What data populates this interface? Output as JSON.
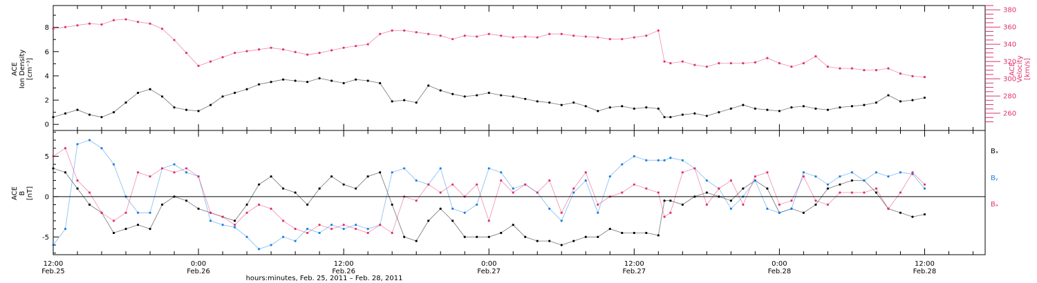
{
  "figure": {
    "xlabel": "hours:minutes, Feb. 25, 2011 – Feb. 28, 2011",
    "x_ticks": [
      {
        "t": 0,
        "time": "12:00",
        "date": "Feb.25"
      },
      {
        "t": 12,
        "time": "0:00",
        "date": "Feb.26"
      },
      {
        "t": 24,
        "time": "12:00",
        "date": "Feb.26"
      },
      {
        "t": 36,
        "time": "0:00",
        "date": "Feb.27"
      },
      {
        "t": 48,
        "time": "12:00",
        "date": "Feb.27"
      },
      {
        "t": 60,
        "time": "0:00",
        "date": "Feb.28"
      },
      {
        "t": 72,
        "time": "12:00",
        "date": "Feb.28"
      }
    ],
    "colors": {
      "density": "#000000",
      "velocity": "#e0326a",
      "bx": "#000000",
      "by": "#1a7fe6",
      "bz": "#e0326a"
    }
  },
  "chart_data": [
    {
      "type": "scatter",
      "title": "",
      "xlim": [
        0,
        77
      ],
      "ylabel_left": [
        "ACE",
        "Ion Density",
        "[cm⁻³]"
      ],
      "ylabel_right": [
        "ACE",
        "Velocity",
        "[km/s]"
      ],
      "ylim_left": [
        -0.5,
        9.8
      ],
      "ylim_right": [
        240,
        385
      ],
      "left_ticks": [
        "0",
        "2",
        "4",
        "6",
        "8"
      ],
      "right_ticks": [
        "260",
        "280",
        "300",
        "320",
        "340",
        "360",
        "380"
      ],
      "series": [
        {
          "name": "",
          "axis": "left",
          "color": "#000000",
          "x": [
            0,
            1,
            2,
            3,
            4,
            5,
            6,
            7,
            8,
            9,
            10,
            11,
            12,
            13,
            14,
            15,
            16,
            17,
            18,
            19,
            20,
            21,
            22,
            23,
            24,
            25,
            26,
            27,
            28,
            29,
            30,
            31,
            32,
            33,
            34,
            35,
            36,
            37,
            38,
            39,
            40,
            41,
            42,
            43,
            44,
            45,
            46,
            47,
            48,
            49,
            50,
            50.5,
            51,
            52,
            53,
            54,
            55,
            56,
            57,
            58,
            59,
            60,
            61,
            62,
            63,
            64,
            65,
            66,
            67,
            68,
            69,
            70,
            71,
            72
          ],
          "y": [
            0.6,
            0.9,
            1.2,
            0.8,
            0.6,
            1.0,
            1.8,
            2.6,
            2.9,
            2.3,
            1.4,
            1.2,
            1.1,
            1.6,
            2.3,
            2.6,
            2.9,
            3.3,
            3.5,
            3.7,
            3.6,
            3.5,
            3.8,
            3.6,
            3.4,
            3.7,
            3.6,
            3.4,
            1.9,
            2.0,
            1.8,
            3.2,
            2.8,
            2.5,
            2.3,
            2.4,
            2.6,
            2.4,
            2.3,
            2.1,
            1.9,
            1.8,
            1.6,
            1.8,
            1.5,
            1.1,
            1.4,
            1.5,
            1.3,
            1.4,
            1.3,
            0.6,
            0.6,
            0.8,
            0.9,
            0.7,
            1.0,
            1.3,
            1.6,
            1.3,
            1.2,
            1.1,
            1.4,
            1.5,
            1.3,
            1.2,
            1.4,
            1.5,
            1.6,
            1.8,
            2.4,
            1.9,
            2.0,
            2.2
          ]
        },
        {
          "name": "",
          "axis": "right",
          "color": "#e0326a",
          "x": [
            0,
            1,
            2,
            3,
            4,
            5,
            6,
            7,
            8,
            9,
            10,
            11,
            12,
            13,
            14,
            15,
            16,
            17,
            18,
            19,
            20,
            21,
            22,
            23,
            24,
            25,
            26,
            27,
            28,
            29,
            30,
            31,
            32,
            33,
            34,
            35,
            36,
            37,
            38,
            39,
            40,
            41,
            42,
            43,
            44,
            45,
            46,
            47,
            48,
            49,
            50,
            50.5,
            51,
            52,
            53,
            54,
            55,
            56,
            57,
            58,
            59,
            60,
            61,
            62,
            63,
            64,
            65,
            66,
            67,
            68,
            69,
            70,
            71,
            72
          ],
          "y": [
            358,
            360,
            362,
            364,
            363,
            368,
            369,
            366,
            364,
            358,
            345,
            330,
            315,
            320,
            325,
            330,
            332,
            334,
            336,
            334,
            331,
            328,
            330,
            333,
            336,
            338,
            340,
            352,
            356,
            356,
            354,
            352,
            350,
            346,
            350,
            349,
            352,
            350,
            348,
            349,
            348,
            352,
            352,
            350,
            349,
            348,
            346,
            346,
            348,
            350,
            356,
            320,
            318,
            320,
            316,
            314,
            318,
            318,
            318,
            319,
            324,
            318,
            314,
            318,
            326,
            314,
            312,
            312,
            310,
            310,
            312,
            306,
            303,
            302
          ]
        }
      ]
    },
    {
      "type": "scatter",
      "title": "",
      "xlim": [
        0,
        77
      ],
      "ylabel": [
        "ACE",
        "B",
        "[nT]"
      ],
      "ylim": [
        -7.2,
        8.2
      ],
      "y_ticks": [
        "-5",
        "0",
        "5"
      ],
      "legend": [
        "Bₓ",
        "Bᵧ",
        "Bₔ"
      ],
      "legend_text": [
        "Bx",
        "By",
        "Bz"
      ],
      "legend_position": "right",
      "series": [
        {
          "name": "Bx",
          "color": "#000000",
          "x": [
            0,
            1,
            2,
            3,
            4,
            5,
            6,
            7,
            8,
            9,
            10,
            11,
            12,
            13,
            14,
            15,
            16,
            17,
            18,
            19,
            20,
            21,
            22,
            23,
            24,
            25,
            26,
            27,
            28,
            29,
            30,
            31,
            32,
            33,
            34,
            35,
            36,
            37,
            38,
            39,
            40,
            41,
            42,
            43,
            44,
            45,
            46,
            47,
            48,
            49,
            50,
            50.5,
            51,
            52,
            53,
            54,
            55,
            56,
            57,
            58,
            59,
            60,
            61,
            62,
            63,
            64,
            65,
            66,
            67,
            68,
            69,
            70,
            71,
            72
          ],
          "y": [
            3.5,
            3.0,
            1.0,
            -1.0,
            -2.0,
            -4.5,
            -4.0,
            -3.5,
            -4.0,
            -1.0,
            0,
            -0.5,
            -1.5,
            -2.0,
            -2.5,
            -3.0,
            -1.0,
            1.5,
            2.5,
            1.0,
            0.5,
            -1.0,
            1.0,
            2.5,
            1.5,
            1.0,
            2.5,
            3.0,
            -1.0,
            -5.0,
            -5.5,
            -3.0,
            -1.5,
            -3.0,
            -5.0,
            -5.0,
            -5.0,
            -4.5,
            -3.5,
            -5.0,
            -5.5,
            -5.5,
            -6.0,
            -5.5,
            -5.0,
            -5.0,
            -4.0,
            -4.5,
            -4.5,
            -4.5,
            -4.8,
            -0.5,
            -0.5,
            -1.0,
            0,
            0.5,
            0.0,
            -0.5,
            1.0,
            2.0,
            1.0,
            -2.0,
            -1.5,
            -2.0,
            -1.0,
            1.0,
            1.5,
            2.0,
            2.0,
            0.5,
            -1.5,
            -2.0,
            -2.5,
            -2.2
          ]
        },
        {
          "name": "By",
          "color": "#1a7fe6",
          "x": [
            0,
            1,
            2,
            3,
            4,
            5,
            6,
            7,
            8,
            9,
            10,
            11,
            12,
            13,
            14,
            15,
            16,
            17,
            18,
            19,
            20,
            21,
            22,
            23,
            24,
            25,
            26,
            27,
            28,
            29,
            30,
            31,
            32,
            33,
            34,
            35,
            36,
            37,
            38,
            39,
            40,
            41,
            42,
            43,
            44,
            45,
            46,
            47,
            48,
            49,
            50,
            50.5,
            51,
            52,
            53,
            54,
            55,
            56,
            57,
            58,
            59,
            60,
            61,
            62,
            63,
            64,
            65,
            66,
            67,
            68,
            69,
            70,
            71,
            72
          ],
          "y": [
            -6.0,
            -4.0,
            6.5,
            7.0,
            6.0,
            4.0,
            0,
            -2.0,
            -2.0,
            3.5,
            4.0,
            3.0,
            2.5,
            -3.0,
            -3.5,
            -3.8,
            -5.0,
            -6.5,
            -6.0,
            -5.0,
            -5.5,
            -4.0,
            -4.5,
            -3.5,
            -4.0,
            -3.5,
            -4.0,
            -3.5,
            3.0,
            3.5,
            2.0,
            1.5,
            3.5,
            -1.5,
            -2.0,
            -1.0,
            3.5,
            3.0,
            1.0,
            1.5,
            0.5,
            -1.5,
            -3.0,
            0.5,
            2.0,
            -2.0,
            2.5,
            4.0,
            5.0,
            4.5,
            4.5,
            4.5,
            4.8,
            4.5,
            3.5,
            2.0,
            1.0,
            -1.5,
            0,
            2.0,
            -1.5,
            -2.0,
            -1.5,
            3.0,
            2.5,
            1.5,
            2.5,
            3.0,
            2.0,
            3.0,
            2.5,
            3.0,
            2.8,
            1.0
          ]
        },
        {
          "name": "Bz",
          "color": "#e0326a",
          "x": [
            0,
            1,
            2,
            3,
            4,
            5,
            6,
            7,
            8,
            9,
            10,
            11,
            12,
            13,
            14,
            15,
            16,
            17,
            18,
            19,
            20,
            21,
            22,
            23,
            24,
            25,
            26,
            27,
            28,
            29,
            30,
            31,
            32,
            33,
            34,
            35,
            36,
            37,
            38,
            39,
            40,
            41,
            42,
            43,
            44,
            45,
            46,
            47,
            48,
            49,
            50,
            50.5,
            51,
            52,
            53,
            54,
            55,
            56,
            57,
            58,
            59,
            60,
            61,
            62,
            63,
            64,
            65,
            66,
            67,
            68,
            69,
            70,
            71,
            72
          ],
          "y": [
            5.0,
            6.0,
            2.0,
            0.5,
            -2.0,
            -3.0,
            -2.0,
            3.0,
            2.5,
            3.5,
            3.0,
            3.5,
            2.5,
            -2.0,
            -2.5,
            -3.5,
            -2.0,
            -1.0,
            -1.5,
            -3.0,
            -4.0,
            -4.5,
            -3.5,
            -4.0,
            -3.5,
            -4.0,
            -4.5,
            -3.5,
            -4.5,
            0,
            -0.5,
            1.5,
            0.5,
            1.5,
            0,
            1.5,
            -3.0,
            2.0,
            0.5,
            1.5,
            0.5,
            2.0,
            -2.0,
            1.0,
            3.0,
            -1.0,
            0,
            0.5,
            1.5,
            1.0,
            0.5,
            -2.5,
            -2.0,
            3.0,
            3.5,
            -1.0,
            1.0,
            2.0,
            -1.0,
            2.5,
            3.0,
            -1.0,
            -0.5,
            2.5,
            -0.5,
            -1.0,
            0.5,
            0.5,
            0.5,
            1.0,
            -1.5,
            0.5,
            3.0,
            1.5
          ]
        }
      ]
    }
  ]
}
